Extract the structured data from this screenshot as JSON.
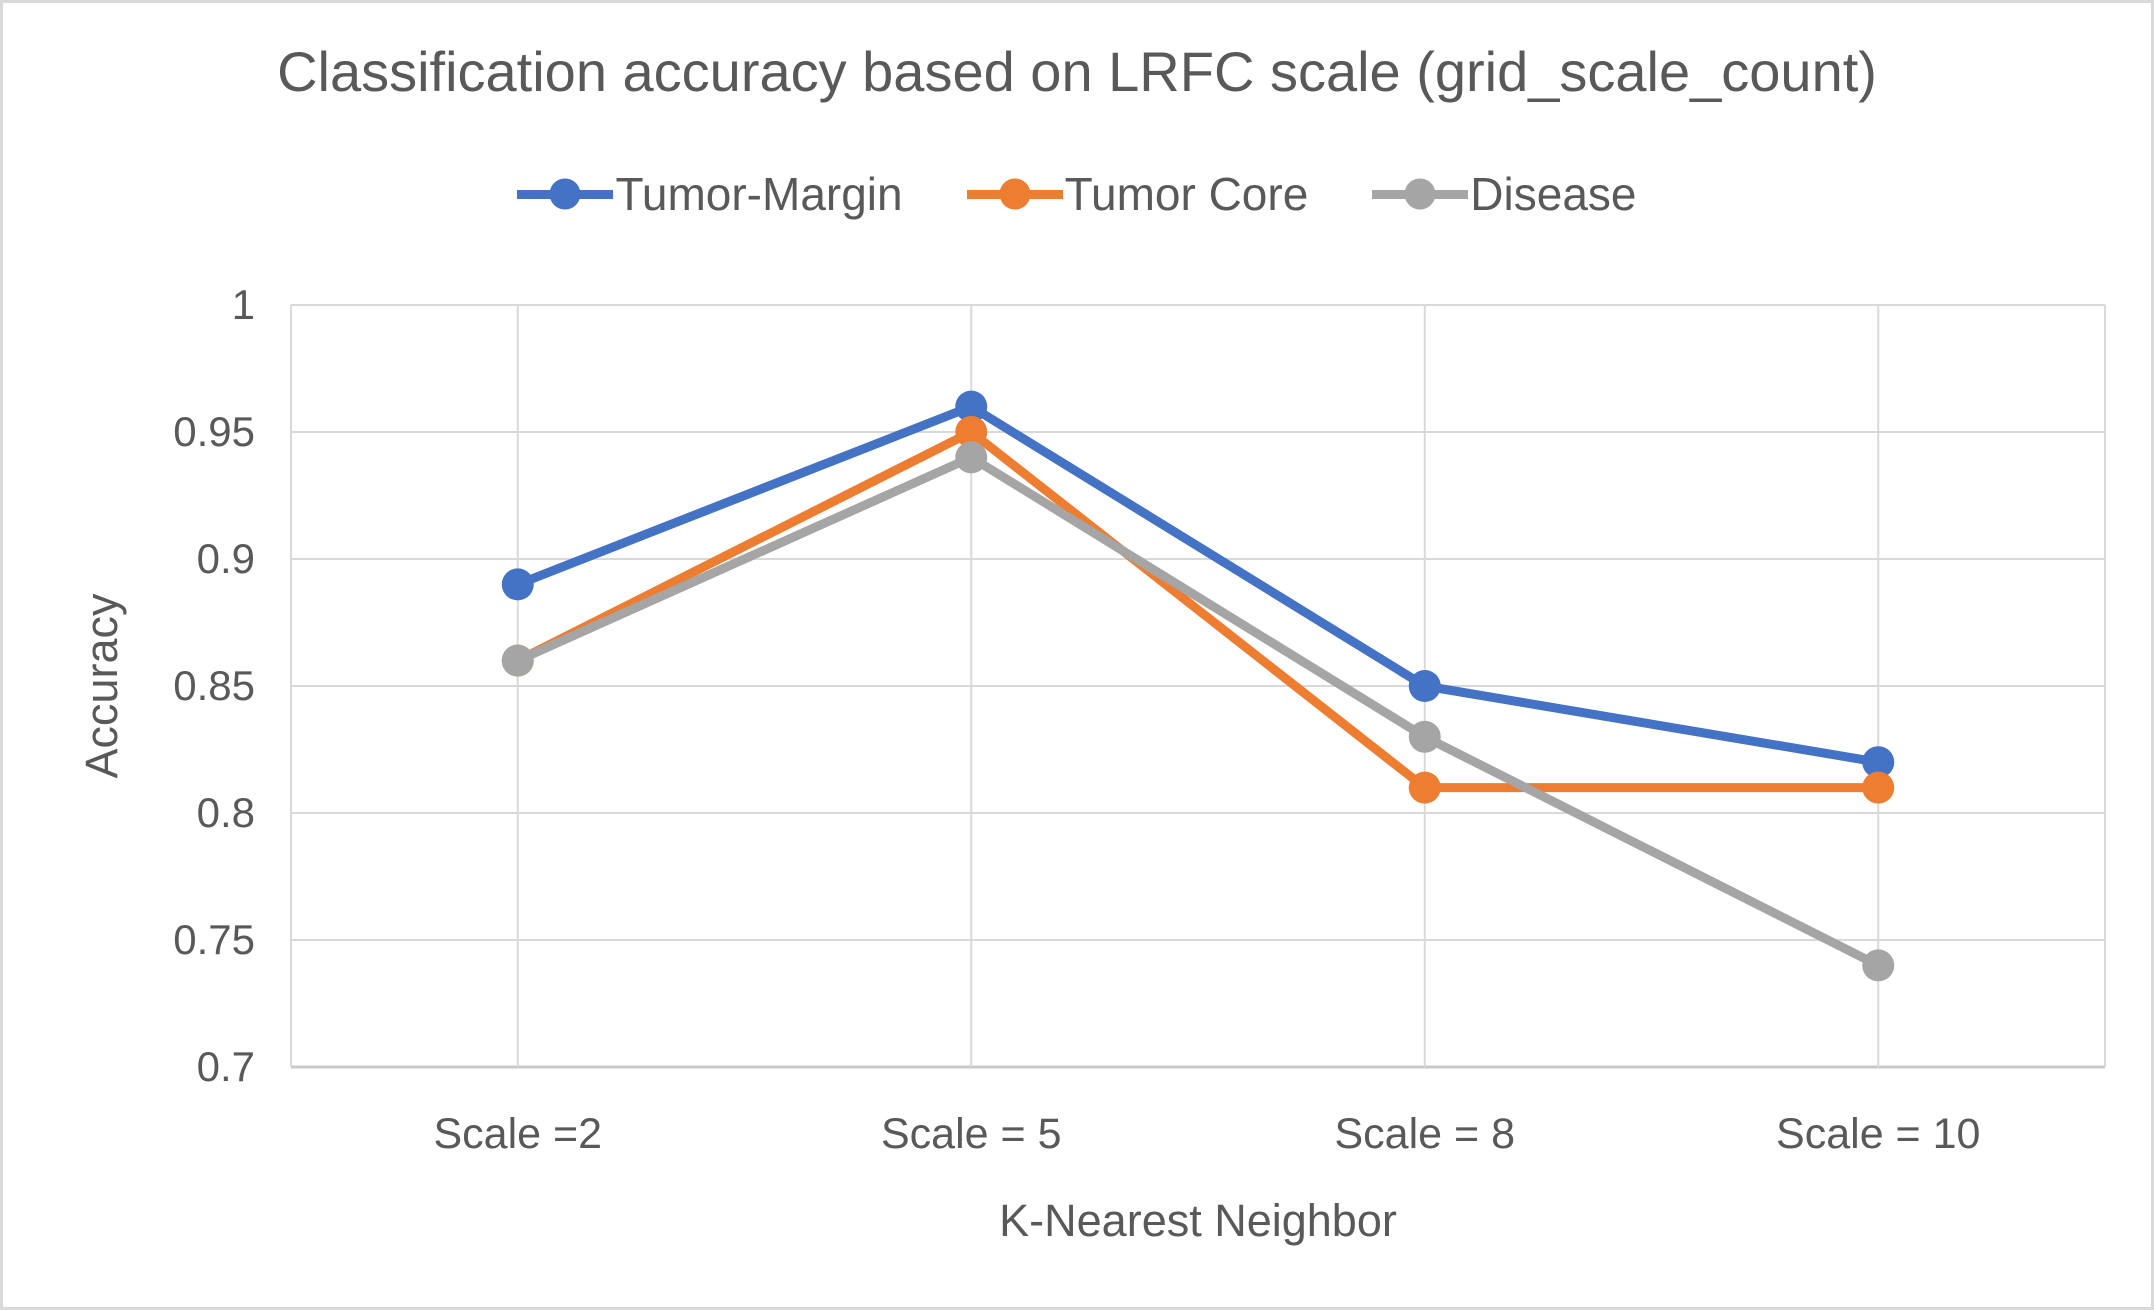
{
  "chart": {
    "title": "Classification accuracy based on LRFC scale (grid_scale_count)",
    "x_axis_title": "K-Nearest Neighbor",
    "y_axis_title": "Accuracy"
  },
  "chart_data": {
    "type": "line",
    "title": "Classification accuracy based on LRFC scale (grid_scale_count)",
    "xlabel": "K-Nearest Neighbor",
    "ylabel": "Accuracy",
    "categories": [
      "Scale =2",
      "Scale = 5",
      "Scale = 8",
      "Scale = 10"
    ],
    "series": [
      {
        "name": "Tumor-Margin",
        "color": "#4472C4",
        "values": [
          0.89,
          0.96,
          0.85,
          0.82
        ]
      },
      {
        "name": "Tumor Core",
        "color": "#ED7D31",
        "values": [
          0.86,
          0.95,
          0.81,
          0.81
        ]
      },
      {
        "name": "Disease",
        "color": "#A5A5A5",
        "values": [
          0.86,
          0.94,
          0.83,
          0.74
        ]
      }
    ],
    "ylim": [
      0.7,
      1.0
    ],
    "ytick_step": 0.05,
    "ytick_labels": [
      "1",
      "0.95",
      "0.9",
      "0.85",
      "0.8",
      "0.75",
      "0.7"
    ],
    "grid": true,
    "legend_position": "top",
    "marker": "circle"
  },
  "colors": {
    "text": "#595959",
    "gridline": "#D9D9D9",
    "axis_line": "#C9C9C9",
    "frame_border": "#D9D9D9",
    "background": "#FFFFFF"
  }
}
